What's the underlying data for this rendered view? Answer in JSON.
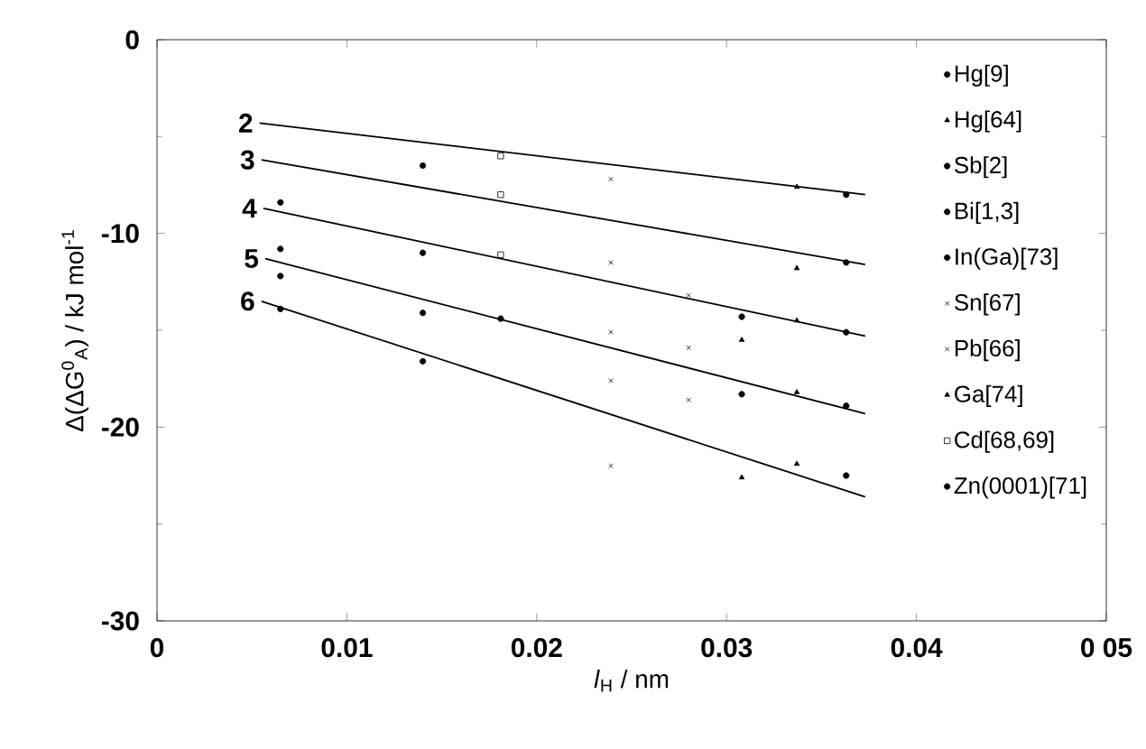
{
  "chart_data": {
    "type": "scatter",
    "xlabel": "*l*$_{H}$ / nm",
    "ylabel": "Δ(ΔG$^{0}$$_{A}$) / kJ mol$^{-1}$",
    "xlim": [
      0,
      0.05
    ],
    "ylim": [
      -30,
      0
    ],
    "xticks": [
      0,
      0.01,
      0.02,
      0.03,
      0.04,
      {
        "value": 0.05,
        "label": "0 05"
      }
    ],
    "yticks": [
      -30,
      -20,
      -10,
      0
    ],
    "grid": false,
    "legend": "right",
    "series": [
      {
        "name": "2",
        "type": "line",
        "color": "#000000",
        "marker": "none",
        "x": [
          0.0054,
          0.0373
        ],
        "values": [
          -4.3,
          -8.0
        ]
      },
      {
        "name": "3",
        "type": "line",
        "color": "#000000",
        "marker": "none",
        "x": [
          0.0055,
          0.0373
        ],
        "values": [
          -6.2,
          -11.6
        ]
      },
      {
        "name": "4",
        "type": "line",
        "color": "#000000",
        "marker": "none",
        "x": [
          0.0056,
          0.0373
        ],
        "values": [
          -8.7,
          -15.3
        ]
      },
      {
        "name": "5",
        "type": "line",
        "color": "#000000",
        "marker": "none",
        "x": [
          0.0057,
          0.0373
        ],
        "values": [
          -11.3,
          -19.3
        ]
      },
      {
        "name": "6",
        "type": "line",
        "color": "#000000",
        "marker": "none",
        "x": [
          0.0055,
          0.0373
        ],
        "values": [
          -13.5,
          -23.6
        ]
      },
      {
        "name": "Hg[9]",
        "color": "#000000",
        "marker": "circle",
        "x": [
          0.0363,
          0.0363,
          0.0363,
          0.0363,
          0.0363
        ],
        "values": [
          -8.0,
          -11.5,
          -15.1,
          -18.9,
          -22.5
        ]
      },
      {
        "name": "Hg[64]",
        "color": "#000000",
        "marker": "triangle",
        "x": [
          0.0337,
          0.0337,
          0.0337,
          0.0337,
          0.0337
        ],
        "values": [
          -7.6,
          -11.8,
          -14.5,
          -18.2,
          -21.9
        ]
      },
      {
        "name": "Sb[2]",
        "color": "#000000",
        "marker": "circle",
        "x": [
          0.014,
          0.014,
          0.014,
          0.014
        ],
        "values": [
          -6.5,
          -11.0,
          -14.1,
          -16.6
        ]
      },
      {
        "name": "Bi[1,3]",
        "color": "#000000",
        "marker": "circle",
        "x": [
          0.0065,
          0.0181
        ],
        "values": [
          -12.2,
          -14.4
        ]
      },
      {
        "name": "In(Ga)[73]",
        "color": "#000000",
        "marker": "circle",
        "x": [
          0.0065,
          0.0308,
          0.0308
        ],
        "values": [
          -13.9,
          -14.3,
          -18.3
        ]
      },
      {
        "name": "Sn[67]",
        "color": "#000000",
        "marker": "cross",
        "x": [
          0.0239,
          0.0239,
          0.0239,
          0.0239,
          0.0239
        ],
        "values": [
          -7.2,
          -11.5,
          -15.1,
          -17.6,
          -22.0
        ]
      },
      {
        "name": "Pb[66]",
        "color": "#000000",
        "marker": "cross",
        "x": [
          0.028,
          0.028,
          0.028
        ],
        "values": [
          -13.2,
          -15.9,
          -18.6
        ]
      },
      {
        "name": "Ga[74]",
        "color": "#000000",
        "marker": "triangle",
        "x": [
          0.0308,
          0.0308
        ],
        "values": [
          -15.5,
          -22.6
        ]
      },
      {
        "name": "Cd[68,69]",
        "color": "#000000",
        "marker": "square",
        "x": [
          0.0181,
          0.0181,
          0.0181
        ],
        "values": [
          -6.0,
          -8.0,
          -11.1
        ]
      },
      {
        "name": "Zn(0001)[71]",
        "color": "#000000",
        "marker": "circle",
        "x": [
          0.0065,
          0.0065
        ],
        "values": [
          -8.4,
          -10.8
        ]
      }
    ]
  }
}
